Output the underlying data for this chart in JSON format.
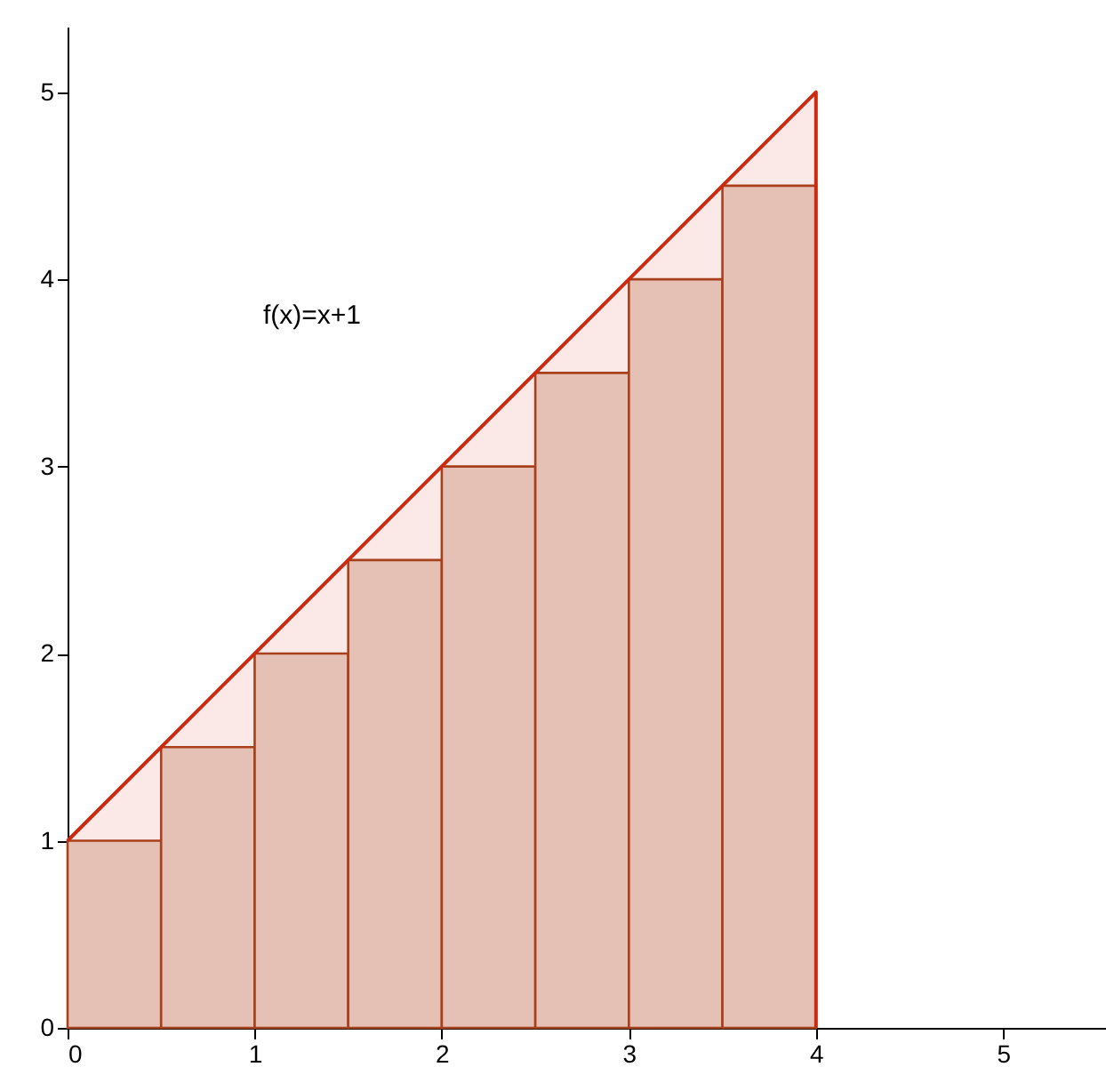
{
  "chart_data": {
    "type": "histogram",
    "bins": [
      0,
      0.5,
      1,
      1.5,
      2,
      2.5,
      3,
      3.5,
      4
    ],
    "values": [
      1,
      1.5,
      2,
      2.5,
      3,
      3.5,
      4,
      4.5
    ],
    "color": "#e8d3c8",
    "series": [
      {
        "type": "area",
        "x": [
          0,
          4
        ],
        "values": [
          1,
          5
        ],
        "color": "#cc2a10"
      }
    ],
    "annotations": [
      "f(x)=x+1"
    ],
    "xlim": [
      0,
      5.55
    ],
    "ylim": [
      0,
      5.35
    ],
    "xticks": [
      0,
      1,
      2,
      3,
      4,
      5
    ],
    "yticks": [
      0,
      1,
      2,
      3,
      4,
      5
    ],
    "grid": false
  }
}
